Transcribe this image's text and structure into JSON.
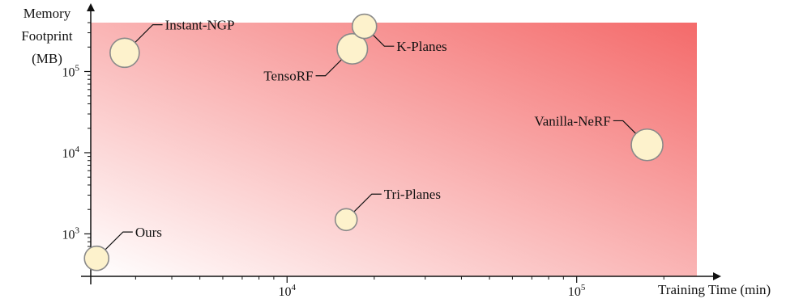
{
  "chart_data": {
    "type": "scatter",
    "title": "",
    "xlabel": "Training Time (min)",
    "ylabel": "Memory Footprint (MB)",
    "ylabel_lines": [
      "Memory",
      "Footprint",
      "(MB)"
    ],
    "x_scale": "log",
    "y_scale": "log",
    "xlim": [
      2100,
      260000
    ],
    "ylim": [
      300,
      400000
    ],
    "x_ticks": [
      {
        "value": 10000,
        "base": "10",
        "exp": "4"
      },
      {
        "value": 100000,
        "base": "10",
        "exp": "5"
      }
    ],
    "y_ticks": [
      {
        "value": 1000,
        "base": "10",
        "exp": "3"
      },
      {
        "value": 10000,
        "base": "10",
        "exp": "4"
      },
      {
        "value": 100000,
        "base": "10",
        "exp": "5"
      }
    ],
    "grid": false,
    "legend": "none",
    "points": [
      {
        "label": "Ours",
        "x": 2200,
        "y": 500,
        "size": 1.0,
        "label_side": "up-right"
      },
      {
        "label": "Instant-NGP",
        "x": 2750,
        "y": 170000,
        "size": 1.2,
        "label_side": "up-right"
      },
      {
        "label": "TensoRF",
        "x": 16800,
        "y": 190000,
        "size": 1.25,
        "label_side": "down-left"
      },
      {
        "label": "K-Planes",
        "x": 18500,
        "y": 360000,
        "size": 1.0,
        "label_side": "down-right"
      },
      {
        "label": "Tri-Planes",
        "x": 16000,
        "y": 1500,
        "size": 0.9,
        "label_side": "up-right"
      },
      {
        "label": "Vanilla-NeRF",
        "x": 175000,
        "y": 12500,
        "size": 1.3,
        "label_side": "up-left"
      }
    ],
    "colors": {
      "background_low": "#ffffff",
      "background_high": "#f46a6a",
      "marker_fill": "#fdf2cc",
      "marker_stroke": "#8a8a8a",
      "axis": "#111111"
    }
  }
}
